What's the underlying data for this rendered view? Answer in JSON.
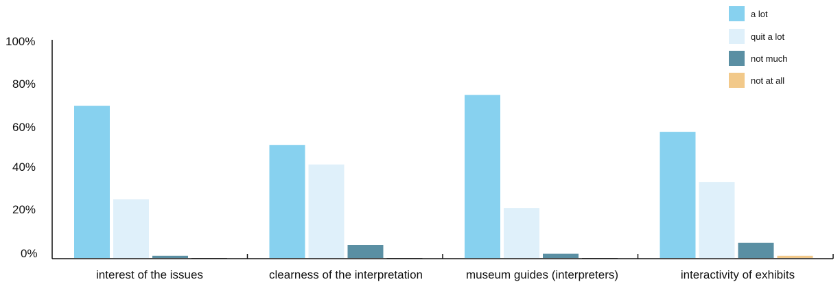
{
  "chart_data": {
    "type": "bar",
    "categories": [
      "interest of the issues",
      "clearness of the interpretation",
      "museum guides (interpreters)",
      "interactivity of exhibits"
    ],
    "series": [
      {
        "name": "a lot",
        "color": "#87d1ef",
        "values": [
          70,
          52,
          75,
          58
        ]
      },
      {
        "name": "quit a lot",
        "color": "#dff0fa",
        "values": [
          27,
          43,
          23,
          35
        ]
      },
      {
        "name": "not much",
        "color": "#5a8fa3",
        "values": [
          1,
          6,
          2,
          7
        ]
      },
      {
        "name": "not at all",
        "color": "#f2c98a",
        "values": [
          0,
          0,
          0,
          1
        ]
      }
    ],
    "y_ticks": [
      "100%",
      "80%",
      "60%",
      "40%",
      "20%",
      "0%"
    ],
    "ylim": [
      0,
      100
    ],
    "grid": false,
    "legend_position": "top-right"
  }
}
